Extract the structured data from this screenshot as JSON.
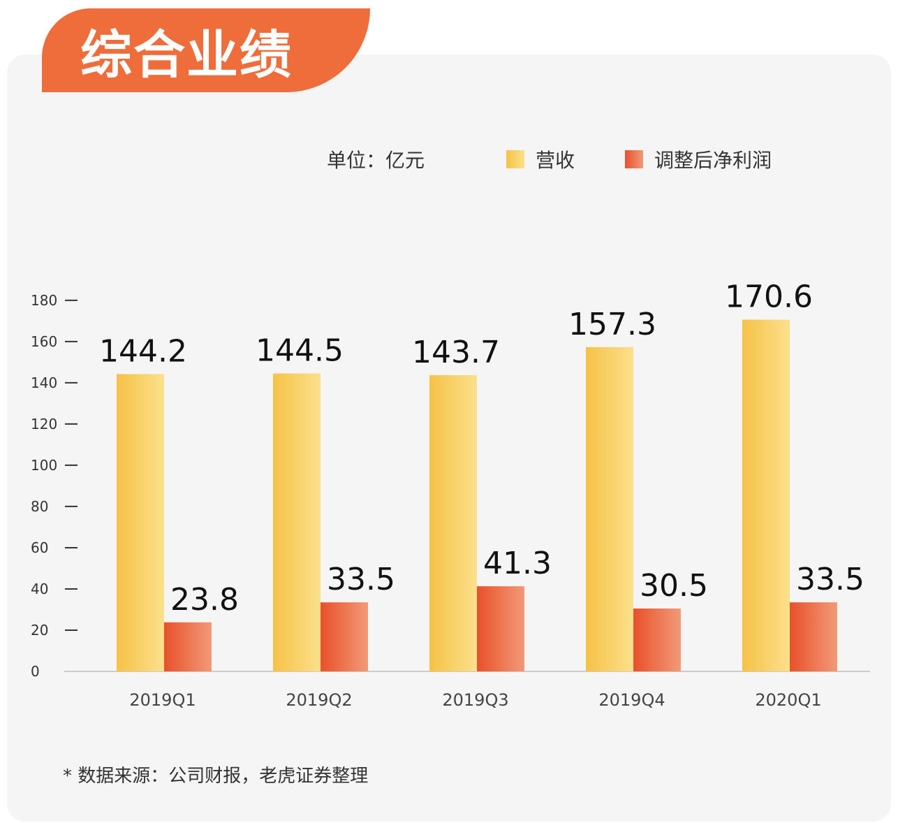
{
  "header": {
    "title": "综合业绩"
  },
  "legend": {
    "unit": "单位：亿元",
    "revenue": "营收",
    "profit": "调整后净利润"
  },
  "footnote": "* 数据来源：公司财报，老虎证券整理",
  "colors": {
    "title_bg": "#ee6d3a",
    "revenue": [
      "#f6c246",
      "#fbe08c"
    ],
    "profit": [
      "#e8512a",
      "#f29a78"
    ]
  },
  "chart_data": {
    "type": "bar",
    "categories": [
      "2019Q1",
      "2019Q2",
      "2019Q3",
      "2019Q4",
      "2020Q1"
    ],
    "series": [
      {
        "name": "营收",
        "values": [
          144.2,
          144.5,
          143.7,
          157.3,
          170.6
        ]
      },
      {
        "name": "调整后净利润",
        "values": [
          23.8,
          33.5,
          41.3,
          30.5,
          33.5
        ]
      }
    ],
    "yticks": [
      0,
      20,
      40,
      60,
      80,
      100,
      120,
      140,
      160,
      180
    ],
    "ylim": [
      0,
      180
    ],
    "grid": false,
    "legend": "top-right"
  }
}
